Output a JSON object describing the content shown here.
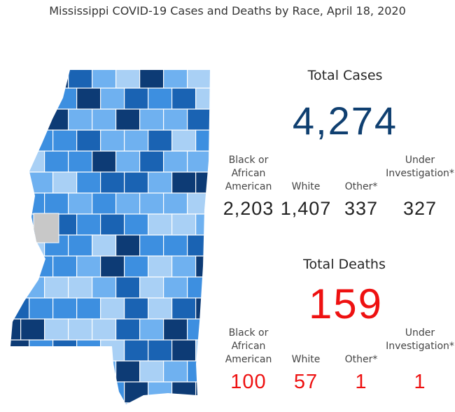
{
  "header": {
    "title": "Mississippi COVID-19 Cases and Deaths by Race, April 18, 2020"
  },
  "cases": {
    "heading": "Total Cases",
    "total": "4,274",
    "breakdown": [
      {
        "label": "Black or African American",
        "value": "2,203"
      },
      {
        "label": "White",
        "value": "1,407"
      },
      {
        "label": "Other*",
        "value": "337"
      },
      {
        "label": "Under Investigation*",
        "value": "327"
      }
    ]
  },
  "deaths": {
    "heading": "Total Deaths",
    "total": "159",
    "breakdown": [
      {
        "label": "Black or African American",
        "value": "100"
      },
      {
        "label": "White",
        "value": "57"
      },
      {
        "label": "Other*",
        "value": "1"
      },
      {
        "label": "Under Investigation*",
        "value": "1"
      }
    ]
  }
}
